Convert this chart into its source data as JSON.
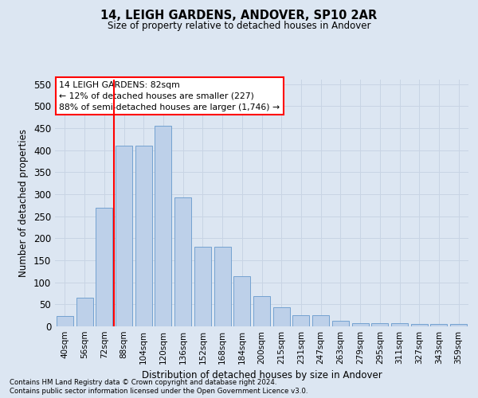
{
  "title1": "14, LEIGH GARDENS, ANDOVER, SP10 2AR",
  "title2": "Size of property relative to detached houses in Andover",
  "xlabel": "Distribution of detached houses by size in Andover",
  "ylabel": "Number of detached properties",
  "categories": [
    "40sqm",
    "56sqm",
    "72sqm",
    "88sqm",
    "104sqm",
    "120sqm",
    "136sqm",
    "152sqm",
    "168sqm",
    "184sqm",
    "200sqm",
    "215sqm",
    "231sqm",
    "247sqm",
    "263sqm",
    "279sqm",
    "295sqm",
    "311sqm",
    "327sqm",
    "343sqm",
    "359sqm"
  ],
  "values": [
    23,
    65,
    270,
    410,
    410,
    455,
    292,
    180,
    180,
    113,
    68,
    43,
    25,
    25,
    13,
    8,
    8,
    7,
    5,
    5,
    5
  ],
  "bar_color": "#bdd0e9",
  "bar_edge_color": "#6699cc",
  "grid_color": "#c8d4e4",
  "bg_color": "#dce6f2",
  "vline_color": "red",
  "annotation_text": "14 LEIGH GARDENS: 82sqm\n← 12% of detached houses are smaller (227)\n88% of semi-detached houses are larger (1,746) →",
  "annotation_box_color": "white",
  "annotation_box_edge": "red",
  "footer1": "Contains HM Land Registry data © Crown copyright and database right 2024.",
  "footer2": "Contains public sector information licensed under the Open Government Licence v3.0.",
  "ylim": [
    0,
    560
  ],
  "yticks": [
    0,
    50,
    100,
    150,
    200,
    250,
    300,
    350,
    400,
    450,
    500,
    550
  ],
  "figsize": [
    6.0,
    5.0
  ],
  "dpi": 100
}
